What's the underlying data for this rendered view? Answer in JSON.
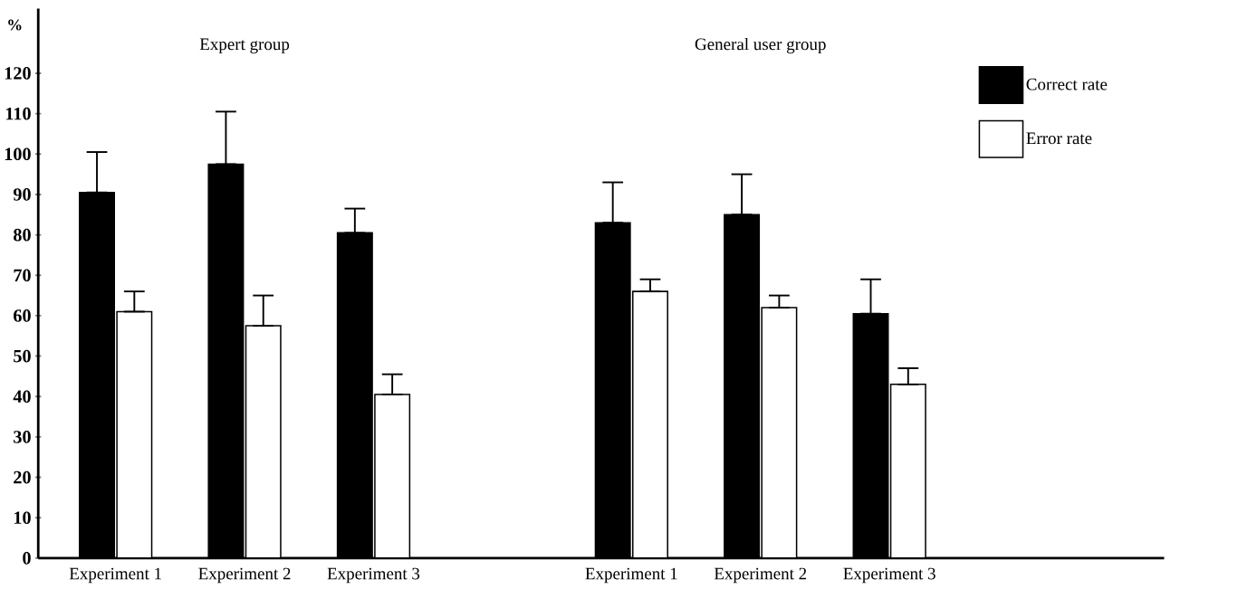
{
  "chart_data": {
    "type": "bar",
    "ylabel": "%",
    "annotations": [
      "Expert group",
      "General user group"
    ],
    "categories": [
      "Experiment 1",
      "Experiment 2",
      "Experiment 3",
      null,
      "Experiment 1",
      "Experiment 2",
      "Experiment 3"
    ],
    "series": [
      {
        "name": "Correct rate",
        "color": "#000000",
        "values": [
          90.5,
          97.5,
          80.5,
          null,
          83,
          85,
          60.5
        ],
        "errors": [
          [
            90.5,
            100.5
          ],
          [
            97.5,
            110.5
          ],
          [
            80.5,
            86.5
          ],
          null,
          [
            83,
            93
          ],
          [
            85,
            95
          ],
          [
            60.5,
            69
          ]
        ]
      },
      {
        "name": "Error rate",
        "color": "#ffffff",
        "values": [
          61,
          57.5,
          40.5,
          null,
          66,
          62,
          43
        ],
        "errors": [
          [
            61,
            66
          ],
          [
            57.5,
            65
          ],
          [
            40.5,
            45.5
          ],
          null,
          [
            66,
            69
          ],
          [
            62,
            65
          ],
          [
            43,
            47
          ]
        ]
      }
    ],
    "ylim": [
      0,
      136
    ],
    "yticks": [
      0,
      10,
      20,
      30,
      40,
      50,
      60,
      70,
      80,
      90,
      100,
      110,
      120
    ],
    "grid": false,
    "legend": "top right"
  }
}
